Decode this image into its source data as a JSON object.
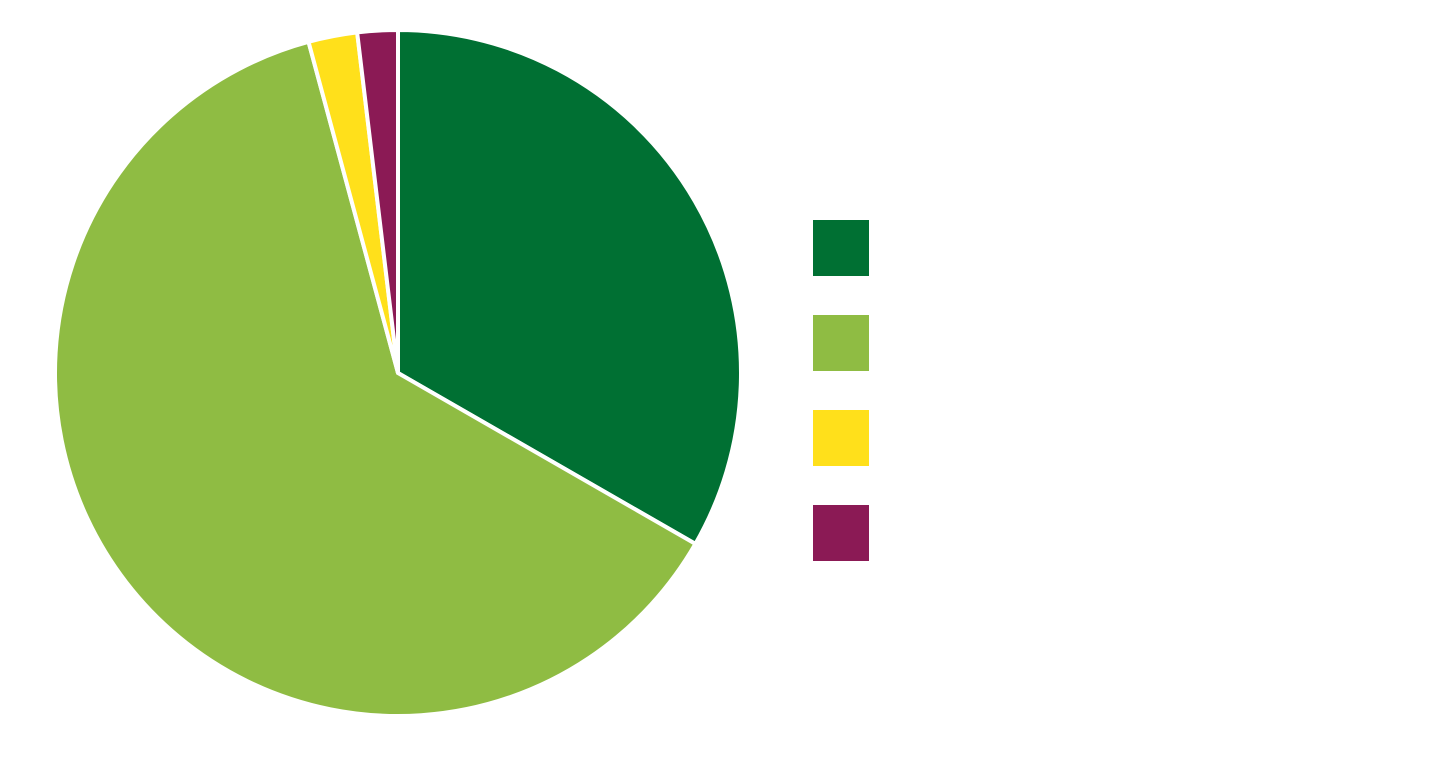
{
  "chart_data": {
    "type": "pie",
    "slices": [
      {
        "value": 33.3,
        "color": "#007033"
      },
      {
        "value": 62.5,
        "color": "#8fbc43"
      },
      {
        "value": 2.3,
        "color": "#ffe01b"
      },
      {
        "value": 1.9,
        "color": "#8b1a55"
      }
    ],
    "start_angle": "12 o'clock",
    "direction": "clockwise",
    "legend": {
      "position": "right",
      "entries": [
        {
          "color": "#007033"
        },
        {
          "color": "#8fbc43"
        },
        {
          "color": "#ffe01b"
        },
        {
          "color": "#8b1a55"
        }
      ]
    }
  }
}
